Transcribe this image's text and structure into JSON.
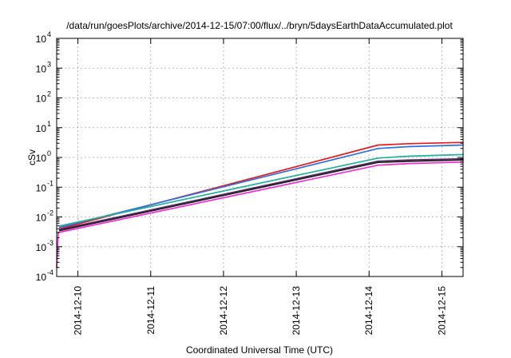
{
  "chart_data": {
    "type": "line",
    "title": "/data/run/goesPlots/archive/2014-12-15/07:00/flux/../bryn/5daysEarthDataAccumulated.plot",
    "xlabel": "Coordinated Universal Time (UTC)",
    "ylabel": "cSv",
    "y_scale": "log",
    "ylim": [
      0.0001,
      10000
    ],
    "xlim": [
      "2014-12-09T17:00",
      "2014-12-15T07:00"
    ],
    "grid": true,
    "legend": "none",
    "y_ticks": [
      {
        "base": "10",
        "exp": "-4",
        "value": 0.0001
      },
      {
        "base": "10",
        "exp": "-3",
        "value": 0.001
      },
      {
        "base": "10",
        "exp": "-2",
        "value": 0.01
      },
      {
        "base": "10",
        "exp": "-1",
        "value": 0.1
      },
      {
        "base": "10",
        "exp": "0",
        "value": 1
      },
      {
        "base": "10",
        "exp": "1",
        "value": 10
      },
      {
        "base": "10",
        "exp": "2",
        "value": 100
      },
      {
        "base": "10",
        "exp": "3",
        "value": 1000
      },
      {
        "base": "10",
        "exp": "4",
        "value": 10000
      }
    ],
    "x_ticks": [
      {
        "label": "2014-12-10",
        "value": "2014-12-10T00:00"
      },
      {
        "label": "2014-12-11",
        "value": "2014-12-11T00:00"
      },
      {
        "label": "2014-12-12",
        "value": "2014-12-12T00:00"
      },
      {
        "label": "2014-12-13",
        "value": "2014-12-13T00:00"
      },
      {
        "label": "2014-12-14",
        "value": "2014-12-14T00:00"
      },
      {
        "label": "2014-12-15",
        "value": "2014-12-15T00:00"
      }
    ],
    "series": [
      {
        "color": "#e41a1c",
        "points": [
          [
            "2014-12-09T18:00",
            0.004
          ],
          [
            "2014-12-14T03:00",
            2.6
          ],
          [
            "2014-12-14T13:00",
            2.9
          ],
          [
            "2014-12-15T07:00",
            3.2
          ]
        ]
      },
      {
        "color": "#2f6fe0",
        "points": [
          [
            "2014-12-09T18:00",
            0.0045
          ],
          [
            "2014-12-14T03:00",
            2.0
          ],
          [
            "2014-12-14T13:00",
            2.3
          ],
          [
            "2014-12-15T07:00",
            2.6
          ]
        ]
      },
      {
        "color": "#21b09b",
        "points": [
          [
            "2014-12-09T18:00",
            0.005
          ],
          [
            "2014-12-14T03:00",
            0.95
          ],
          [
            "2014-12-14T13:00",
            1.1
          ],
          [
            "2014-12-15T07:00",
            1.25
          ]
        ]
      },
      {
        "color": "#5a2a6e",
        "points": [
          [
            "2014-12-09T18:00",
            0.0038
          ],
          [
            "2014-12-14T03:00",
            0.75
          ],
          [
            "2014-12-14T13:00",
            0.82
          ],
          [
            "2014-12-15T07:00",
            0.9
          ]
        ]
      },
      {
        "color": "#222222",
        "points": [
          [
            "2014-12-09T18:00",
            0.0035
          ],
          [
            "2014-12-14T03:00",
            0.68
          ],
          [
            "2014-12-14T13:00",
            0.74
          ],
          [
            "2014-12-15T07:00",
            0.82
          ]
        ]
      },
      {
        "color": "#f02cd0",
        "points": [
          [
            "2014-12-09T17:00",
            0.0002
          ],
          [
            "2014-12-09T17:30",
            0.003
          ],
          [
            "2014-12-14T03:00",
            0.55
          ],
          [
            "2014-12-14T13:00",
            0.62
          ],
          [
            "2014-12-15T07:00",
            0.7
          ]
        ]
      }
    ]
  }
}
